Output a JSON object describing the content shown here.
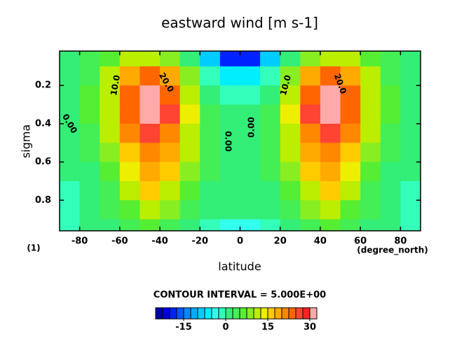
{
  "chart_data": {
    "type": "contour",
    "title": "eastward wind [m s-1]",
    "x_label": "latitude",
    "y_label": "sigma",
    "x_unit": "(degree_north)",
    "y_unit": "(1)",
    "contour_interval": "CONTOUR INTERVAL = 5.000E+00",
    "contour_labels": [
      "10.0",
      "20.0",
      "0.00",
      "0.00",
      "0.00",
      "10.0",
      "20.0"
    ],
    "xlim": [
      -90,
      90
    ],
    "ylim": [
      0.96,
      0.02
    ],
    "xticks": [
      -80,
      -60,
      -40,
      -20,
      0,
      20,
      40,
      60,
      80
    ],
    "yticks": [
      0.2,
      0.4,
      0.6,
      0.8
    ],
    "x": [
      -85,
      -75,
      -65,
      -55,
      -45,
      -35,
      -25,
      -15,
      -5,
      5,
      15,
      25,
      35,
      45,
      55,
      65,
      75,
      85
    ],
    "y": [
      0.05,
      0.15,
      0.25,
      0.35,
      0.45,
      0.55,
      0.65,
      0.75,
      0.85,
      0.95
    ],
    "z": [
      [
        1,
        3,
        6,
        10,
        12,
        8,
        0,
        -10,
        -18,
        -18,
        -10,
        0,
        8,
        12,
        10,
        6,
        3,
        1
      ],
      [
        1,
        4,
        10,
        18,
        24,
        18,
        8,
        -2,
        -6,
        -6,
        -2,
        8,
        18,
        24,
        18,
        10,
        4,
        1
      ],
      [
        1,
        5,
        12,
        24,
        32,
        24,
        12,
        2,
        -2,
        -2,
        2,
        12,
        24,
        32,
        24,
        12,
        5,
        1
      ],
      [
        1,
        5,
        12,
        24,
        31,
        25,
        14,
        3,
        0,
        0,
        3,
        14,
        25,
        31,
        24,
        12,
        5,
        1
      ],
      [
        1,
        4,
        10,
        20,
        26,
        22,
        12,
        3,
        0,
        0,
        3,
        12,
        22,
        26,
        20,
        10,
        4,
        1
      ],
      [
        0,
        3,
        8,
        16,
        22,
        18,
        10,
        3,
        0,
        0,
        3,
        10,
        18,
        22,
        16,
        8,
        3,
        0
      ],
      [
        0,
        2,
        6,
        13,
        18,
        15,
        8,
        3,
        1,
        1,
        3,
        8,
        15,
        18,
        13,
        6,
        2,
        0
      ],
      [
        -1,
        1,
        4,
        10,
        15,
        12,
        6,
        2,
        1,
        1,
        2,
        6,
        12,
        15,
        10,
        4,
        1,
        -1
      ],
      [
        -1,
        1,
        3,
        7,
        11,
        8,
        4,
        1,
        0,
        0,
        1,
        4,
        8,
        11,
        7,
        3,
        1,
        -1
      ],
      [
        -1,
        0,
        2,
        4,
        6,
        4,
        2,
        -1,
        -4,
        -4,
        -1,
        2,
        4,
        6,
        4,
        2,
        0,
        -1
      ]
    ],
    "colorbar": {
      "levels": [
        -25,
        -22.5,
        -20,
        -17.5,
        -15,
        -12.5,
        -10,
        -7.5,
        -5,
        -2.5,
        0,
        2.5,
        5,
        7.5,
        10,
        12.5,
        15,
        17.5,
        20,
        22.5,
        25,
        27.5,
        30
      ],
      "colors": [
        "#0000aa",
        "#0000dd",
        "#0022ff",
        "#0055ff",
        "#0088ff",
        "#00aaff",
        "#00ccff",
        "#00eeff",
        "#33ffee",
        "#33ffbb",
        "#33ee77",
        "#44ee55",
        "#55ee33",
        "#88ee22",
        "#bbee00",
        "#eeee00",
        "#ffcc00",
        "#ffaa00",
        "#ff8800",
        "#ff6600",
        "#ff4433",
        "#ff2222",
        "#ffaaaa"
      ],
      "ticks": [
        -15,
        0,
        15,
        30
      ]
    }
  }
}
